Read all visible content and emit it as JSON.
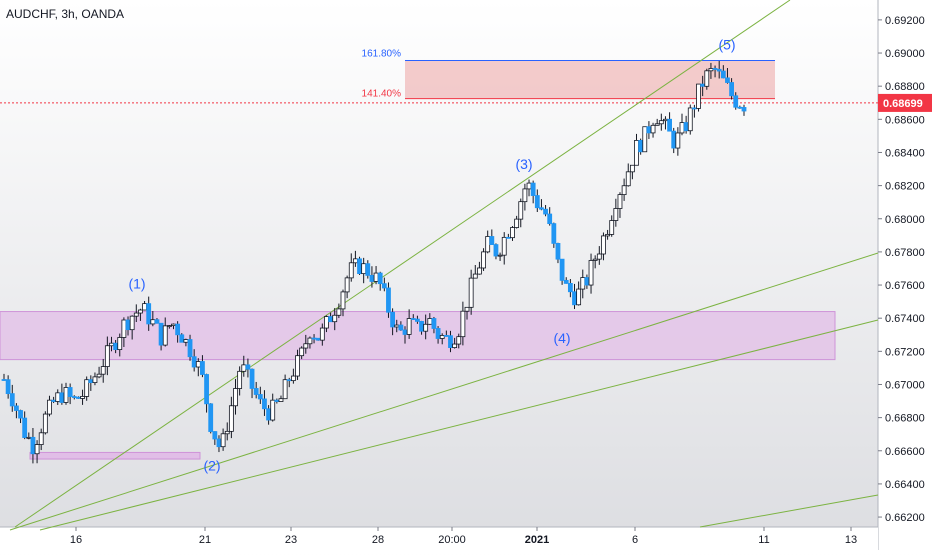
{
  "symbol_title": "AUDCHF, 3h, OANDA",
  "colors": {
    "up_candle": "#ffffff",
    "down_candle": "#2196f3",
    "wick": "#131722",
    "trendline": "#7cb342",
    "support_zone": "#e1bee7",
    "support_zone_border": "#ce93d8",
    "fib_zone": "#e57373",
    "fib_line_top": "#2962ff",
    "fib_line_bottom": "#f23645",
    "wave_label": "#2962ff",
    "price_badge": "#f23645"
  },
  "chart_data": {
    "type": "candlestick",
    "title": "AUDCHF, 3h, OANDA",
    "ylim": [
      0.6615,
      0.693
    ],
    "x_ticks": [
      "16",
      "21",
      "23",
      "28",
      "20:00",
      "2021",
      "6",
      "11",
      "13"
    ],
    "y_ticks": [
      "0.69200",
      "0.69000",
      "0.68800",
      "0.68600",
      "0.68400",
      "0.68200",
      "0.68000",
      "0.67800",
      "0.67600",
      "0.67400",
      "0.67200",
      "0.67000",
      "0.66800",
      "0.66600",
      "0.66400",
      "0.66200"
    ],
    "y_tick_values": [
      0.692,
      0.69,
      0.688,
      0.686,
      0.684,
      0.682,
      0.68,
      0.678,
      0.676,
      0.674,
      0.672,
      0.67,
      0.668,
      0.666,
      0.664,
      0.662
    ],
    "current_price": "0.68699",
    "current_price_value": 0.68699,
    "close_path": [
      0.6703,
      0.669,
      0.6672,
      0.6663,
      0.6678,
      0.6689,
      0.6695,
      0.669,
      0.6694,
      0.6703,
      0.6713,
      0.6723,
      0.6735,
      0.6742,
      0.6746,
      0.6738,
      0.6728,
      0.6738,
      0.673,
      0.672,
      0.6707,
      0.6675,
      0.666,
      0.6686,
      0.6712,
      0.67,
      0.6688,
      0.6683,
      0.669,
      0.6705,
      0.6715,
      0.6733,
      0.6728,
      0.674,
      0.6752,
      0.6768,
      0.6772,
      0.6768,
      0.6762,
      0.6745,
      0.673,
      0.6737,
      0.6733,
      0.674,
      0.673,
      0.6727,
      0.6732,
      0.6752,
      0.677,
      0.6784,
      0.678,
      0.6792,
      0.6805,
      0.6822,
      0.681,
      0.6802,
      0.6775,
      0.6758,
      0.6753,
      0.6762,
      0.6778,
      0.6792,
      0.6812,
      0.6825,
      0.6842,
      0.685,
      0.6864,
      0.6855,
      0.6846,
      0.6855,
      0.687,
      0.6885,
      0.689,
      0.6882,
      0.6872,
      0.6869
    ],
    "wave_labels": [
      {
        "label": "(1)",
        "price": 0.6758
      },
      {
        "label": "(2)",
        "price": 0.6648
      },
      {
        "label": "(3)",
        "price": 0.683
      },
      {
        "label": "(4)",
        "price": 0.6725
      },
      {
        "label": "(5)",
        "price": 0.6902
      }
    ],
    "fib_levels": [
      {
        "label": "161.80%",
        "price": 0.68955
      },
      {
        "label": "141.40%",
        "price": 0.68725
      }
    ],
    "support_zone": {
      "top": 0.6744,
      "bottom": 0.6715
    },
    "minor_zone": {
      "top": 0.6659,
      "bottom": 0.6655
    }
  }
}
